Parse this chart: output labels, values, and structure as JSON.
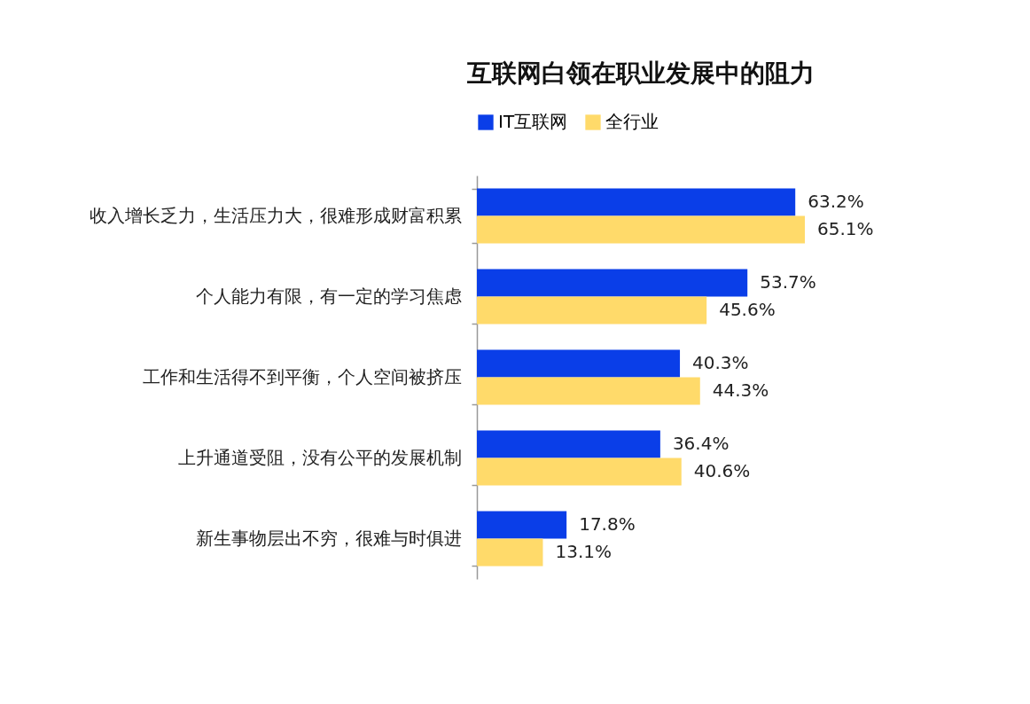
{
  "chart_data": {
    "type": "bar",
    "orientation": "horizontal",
    "title": "互联网白领在职业发展中的阻力",
    "categories": [
      "收入增长乏力，生活压力大，很难形成财富积累",
      "个人能力有限，有一定的学习焦虑",
      "工作和生活得不到平衡，个人空间被挤压",
      "上升通道受阻，没有公平的发展机制",
      "新生事物层出不穷，很难与时俱进"
    ],
    "series": [
      {
        "name": "IT互联网",
        "color": "#0a3ee8",
        "values": [
          63.2,
          53.7,
          40.3,
          36.4,
          17.8
        ],
        "value_labels": [
          "63.2%",
          "53.7%",
          "40.3%",
          "36.4%",
          "17.8%"
        ]
      },
      {
        "name": "全行业",
        "color": "#ffda6a",
        "values": [
          65.1,
          45.6,
          44.3,
          40.6,
          13.1
        ],
        "value_labels": [
          "65.1%",
          "45.6%",
          "44.3%",
          "40.6%",
          "13.1%"
        ]
      }
    ],
    "legend": "top",
    "tick_labels": "y"
  }
}
